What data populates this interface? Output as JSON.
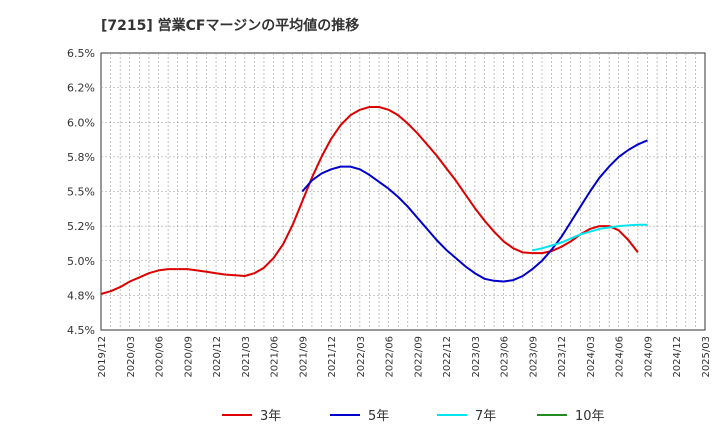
{
  "chart_data": {
    "type": "line",
    "title": "[7215]  営業CFマージンの平均値の推移",
    "xlabel": "",
    "ylabel": "",
    "ylim": [
      4.5,
      6.5
    ],
    "yticks": [
      4.5,
      4.75,
      5.0,
      5.25,
      5.5,
      5.75,
      6.0,
      6.25,
      6.5
    ],
    "ytick_labels": [
      "4.5%",
      "4.8%",
      "5.0%",
      "5.2%",
      "5.5%",
      "5.8%",
      "6.0%",
      "6.2%",
      "6.5%"
    ],
    "x_ticks": [
      "2019/12",
      "2020/03",
      "2020/06",
      "2020/09",
      "2020/12",
      "2021/03",
      "2021/06",
      "2021/09",
      "2021/12",
      "2022/03",
      "2022/06",
      "2022/09",
      "2022/12",
      "2023/03",
      "2023/06",
      "2023/09",
      "2023/12",
      "2024/03",
      "2024/06",
      "2024/09",
      "2024/12",
      "2025/03"
    ],
    "grid": true,
    "legend_position": "bottom",
    "series": [
      {
        "name": "3年",
        "color": "#dd0000",
        "points": [
          [
            "2019/12",
            4.76
          ],
          [
            "2020/01",
            4.78
          ],
          [
            "2020/02",
            4.81
          ],
          [
            "2020/03",
            4.85
          ],
          [
            "2020/04",
            4.88
          ],
          [
            "2020/05",
            4.91
          ],
          [
            "2020/06",
            4.93
          ],
          [
            "2020/07",
            4.94
          ],
          [
            "2020/08",
            4.94
          ],
          [
            "2020/09",
            4.94
          ],
          [
            "2020/10",
            4.93
          ],
          [
            "2020/11",
            4.92
          ],
          [
            "2020/12",
            4.91
          ],
          [
            "2021/01",
            4.9
          ],
          [
            "2021/02",
            4.895
          ],
          [
            "2021/03",
            4.89
          ],
          [
            "2021/04",
            4.91
          ],
          [
            "2021/05",
            4.95
          ],
          [
            "2021/06",
            5.02
          ],
          [
            "2021/07",
            5.12
          ],
          [
            "2021/08",
            5.26
          ],
          [
            "2021/09",
            5.43
          ],
          [
            "2021/10",
            5.6
          ],
          [
            "2021/11",
            5.75
          ],
          [
            "2021/12",
            5.88
          ],
          [
            "2022/01",
            5.98
          ],
          [
            "2022/02",
            6.05
          ],
          [
            "2022/03",
            6.09
          ],
          [
            "2022/04",
            6.11
          ],
          [
            "2022/05",
            6.11
          ],
          [
            "2022/06",
            6.09
          ],
          [
            "2022/07",
            6.05
          ],
          [
            "2022/08",
            5.99
          ],
          [
            "2022/09",
            5.92
          ],
          [
            "2022/10",
            5.84
          ],
          [
            "2022/11",
            5.76
          ],
          [
            "2022/12",
            5.67
          ],
          [
            "2023/01",
            5.58
          ],
          [
            "2023/02",
            5.48
          ],
          [
            "2023/03",
            5.38
          ],
          [
            "2023/04",
            5.29
          ],
          [
            "2023/05",
            5.21
          ],
          [
            "2023/06",
            5.14
          ],
          [
            "2023/07",
            5.09
          ],
          [
            "2023/08",
            5.06
          ],
          [
            "2023/09",
            5.055
          ],
          [
            "2023/10",
            5.055
          ],
          [
            "2023/11",
            5.07
          ],
          [
            "2023/12",
            5.1
          ],
          [
            "2024/01",
            5.14
          ],
          [
            "2024/02",
            5.19
          ],
          [
            "2024/03",
            5.23
          ],
          [
            "2024/04",
            5.25
          ],
          [
            "2024/05",
            5.25
          ],
          [
            "2024/06",
            5.22
          ],
          [
            "2024/07",
            5.15
          ],
          [
            "2024/08",
            5.06
          ]
        ]
      },
      {
        "name": "5年",
        "color": "#0000cc",
        "points": [
          [
            "2021/09",
            5.5
          ],
          [
            "2021/10",
            5.58
          ],
          [
            "2021/11",
            5.63
          ],
          [
            "2021/12",
            5.66
          ],
          [
            "2022/01",
            5.68
          ],
          [
            "2022/02",
            5.68
          ],
          [
            "2022/03",
            5.66
          ],
          [
            "2022/04",
            5.62
          ],
          [
            "2022/05",
            5.57
          ],
          [
            "2022/06",
            5.52
          ],
          [
            "2022/07",
            5.46
          ],
          [
            "2022/08",
            5.39
          ],
          [
            "2022/09",
            5.31
          ],
          [
            "2022/10",
            5.23
          ],
          [
            "2022/11",
            5.15
          ],
          [
            "2022/12",
            5.08
          ],
          [
            "2023/01",
            5.02
          ],
          [
            "2023/02",
            4.96
          ],
          [
            "2023/03",
            4.91
          ],
          [
            "2023/04",
            4.87
          ],
          [
            "2023/05",
            4.855
          ],
          [
            "2023/06",
            4.85
          ],
          [
            "2023/07",
            4.86
          ],
          [
            "2023/08",
            4.89
          ],
          [
            "2023/09",
            4.94
          ],
          [
            "2023/10",
            5.0
          ],
          [
            "2023/11",
            5.08
          ],
          [
            "2023/12",
            5.17
          ],
          [
            "2024/01",
            5.28
          ],
          [
            "2024/02",
            5.39
          ],
          [
            "2024/03",
            5.5
          ],
          [
            "2024/04",
            5.6
          ],
          [
            "2024/05",
            5.68
          ],
          [
            "2024/06",
            5.75
          ],
          [
            "2024/07",
            5.8
          ],
          [
            "2024/08",
            5.84
          ],
          [
            "2024/09",
            5.87
          ]
        ]
      },
      {
        "name": "7年",
        "color": "#00e5ee",
        "points": [
          [
            "2023/09",
            5.075
          ],
          [
            "2023/10",
            5.09
          ],
          [
            "2023/11",
            5.11
          ],
          [
            "2023/12",
            5.13
          ],
          [
            "2024/01",
            5.16
          ],
          [
            "2024/02",
            5.19
          ],
          [
            "2024/03",
            5.21
          ],
          [
            "2024/04",
            5.23
          ],
          [
            "2024/05",
            5.24
          ],
          [
            "2024/06",
            5.25
          ],
          [
            "2024/07",
            5.255
          ],
          [
            "2024/08",
            5.26
          ],
          [
            "2024/09",
            5.26
          ]
        ]
      },
      {
        "name": "10年",
        "color": "#228b22",
        "points": []
      }
    ]
  }
}
